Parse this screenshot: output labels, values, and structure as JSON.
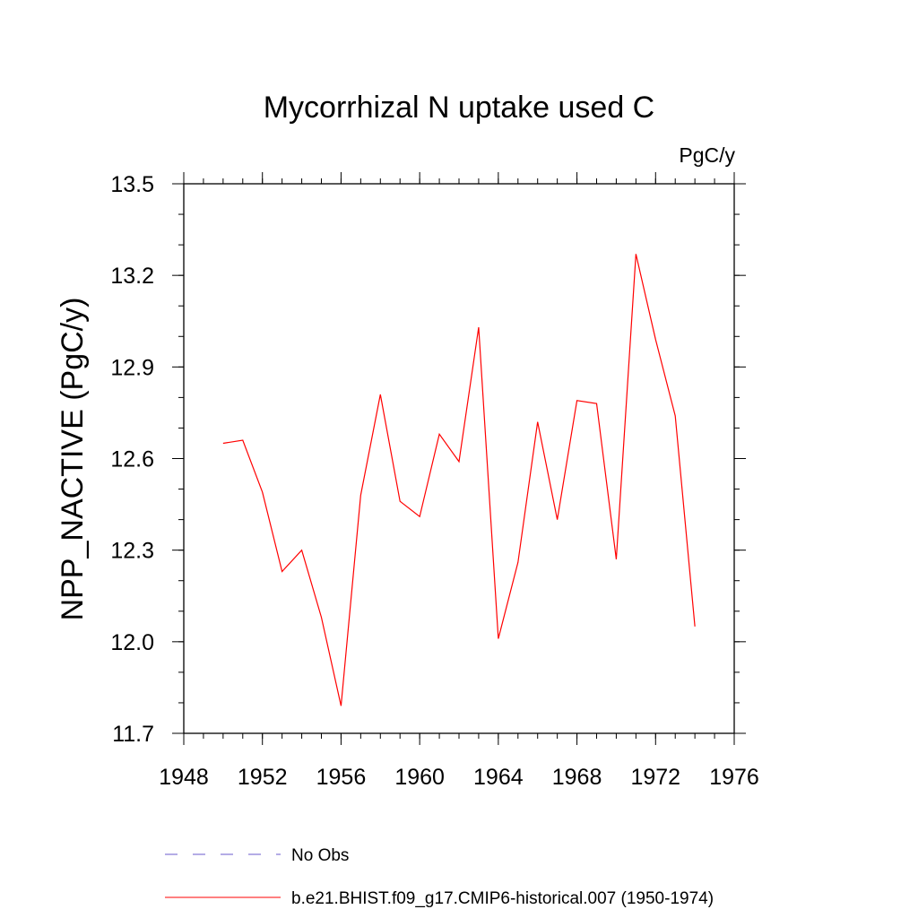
{
  "chart_data": {
    "type": "line",
    "title": "Mycorrhizal N uptake used C",
    "units_label": "PgC/y",
    "xlabel": "",
    "ylabel": "NPP_NACTIVE  (PgC/y)",
    "xlim": [
      1948,
      1976
    ],
    "ylim": [
      11.7,
      13.5
    ],
    "x_ticks": [
      1948,
      1952,
      1956,
      1960,
      1964,
      1968,
      1972,
      1976
    ],
    "y_ticks": [
      "11.7",
      "12.0",
      "12.3",
      "12.6",
      "12.9",
      "13.2",
      "13.5"
    ],
    "grid": false,
    "legend_position": "bottom",
    "series": [
      {
        "name": "No Obs",
        "color": "#6a5acd",
        "dash": "dashed",
        "x": [],
        "values": []
      },
      {
        "name": "b.e21.BHIST.f09_g17.CMIP6-historical.007 (1950-1974)",
        "color": "#ff0000",
        "dash": "solid",
        "x": [
          1950,
          1951,
          1952,
          1953,
          1954,
          1955,
          1956,
          1957,
          1958,
          1959,
          1960,
          1961,
          1962,
          1963,
          1964,
          1965,
          1966,
          1967,
          1968,
          1969,
          1970,
          1971,
          1972,
          1973,
          1974
        ],
        "values": [
          12.65,
          12.66,
          12.49,
          12.23,
          12.3,
          12.08,
          11.79,
          12.48,
          12.81,
          12.46,
          12.41,
          12.68,
          12.59,
          13.03,
          12.01,
          12.26,
          12.72,
          12.4,
          12.79,
          12.78,
          12.27,
          13.27,
          12.99,
          12.74,
          12.05
        ]
      }
    ]
  }
}
